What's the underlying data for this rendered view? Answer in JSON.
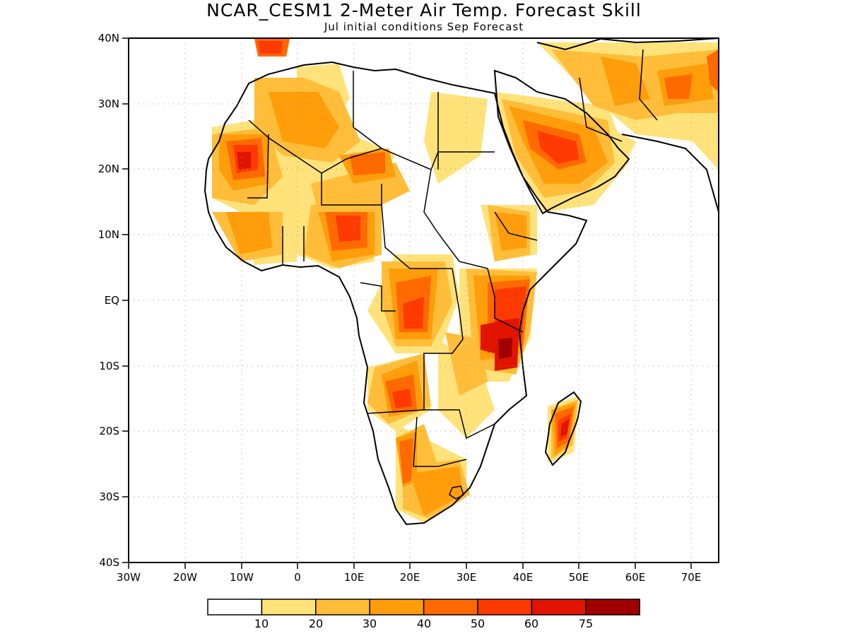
{
  "header": {
    "title": "NCAR_CESM1 2-Meter Air Temp. Forecast Skill",
    "subtitle": "Jul initial conditions  Sep Forecast"
  },
  "map": {
    "lon_labels": [
      "30W",
      "20W",
      "10W",
      "0",
      "10E",
      "20E",
      "30E",
      "40E",
      "50E",
      "60E",
      "70E"
    ],
    "lat_labels": [
      "40N",
      "30N",
      "20N",
      "10N",
      "EQ",
      "10S",
      "20S",
      "30S",
      "40S"
    ],
    "lon_range": [
      -30,
      75
    ],
    "lat_range": [
      -40,
      40
    ],
    "grid": true,
    "ocean_color": "#ffffff",
    "coastline_color": "#000000"
  },
  "colorbar": {
    "colors": [
      "#ffffff",
      "#ffe27a",
      "#ffbd3a",
      "#ff9d0a",
      "#ff6a00",
      "#ff3a00",
      "#e01400",
      "#a00000"
    ],
    "labels": [
      "10",
      "20",
      "30",
      "40",
      "50",
      "60",
      "75"
    ]
  }
}
